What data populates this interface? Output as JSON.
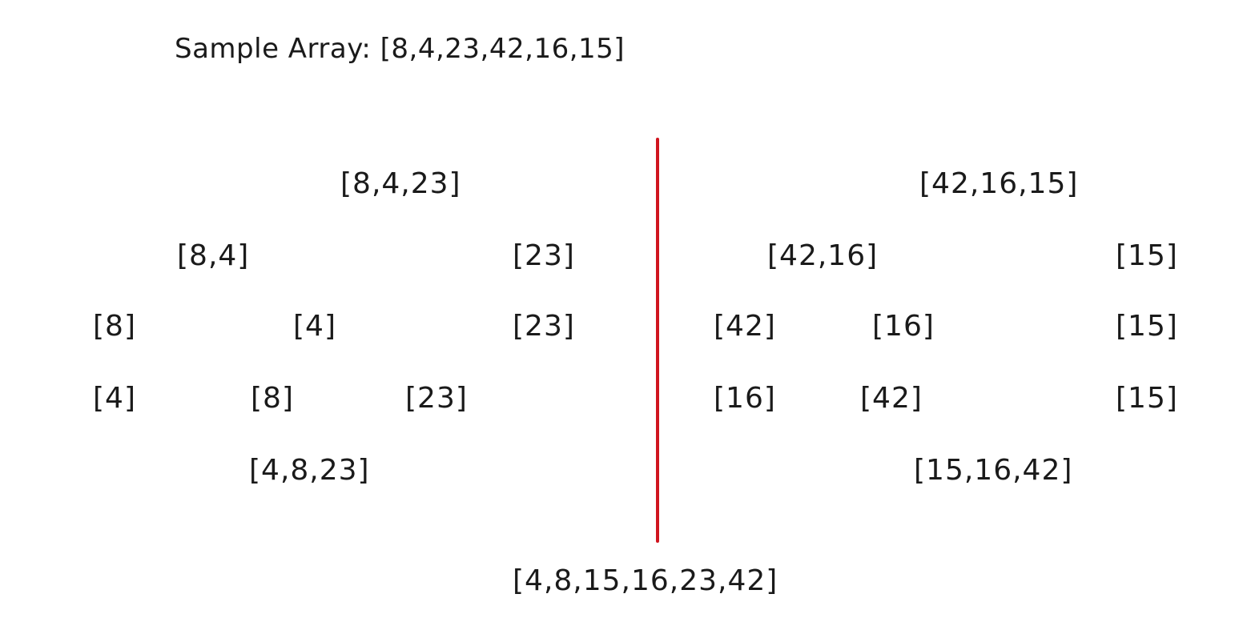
{
  "title": "Sample Array: [8,4,23,42,16,15]",
  "divider_color": "#d0141e",
  "left": {
    "split_root": "[8,4,23]",
    "split_a": "[8,4]",
    "split_b": "[23]",
    "leaf_1": "[8]",
    "leaf_2": "[4]",
    "leaf_3": "[23]",
    "sorted_1": "[4]",
    "sorted_2": "[8]",
    "sorted_3": "[23]",
    "merged": "[4,8,23]"
  },
  "right": {
    "split_root": "[42,16,15]",
    "split_a": "[42,16]",
    "split_b": "[15]",
    "leaf_1": "[42]",
    "leaf_2": "[16]",
    "leaf_3": "[15]",
    "sorted_1": "[16]",
    "sorted_2": "[42]",
    "sorted_3": "[15]",
    "merged": "[15,16,42]"
  },
  "result": "[4,8,15,16,23,42]"
}
